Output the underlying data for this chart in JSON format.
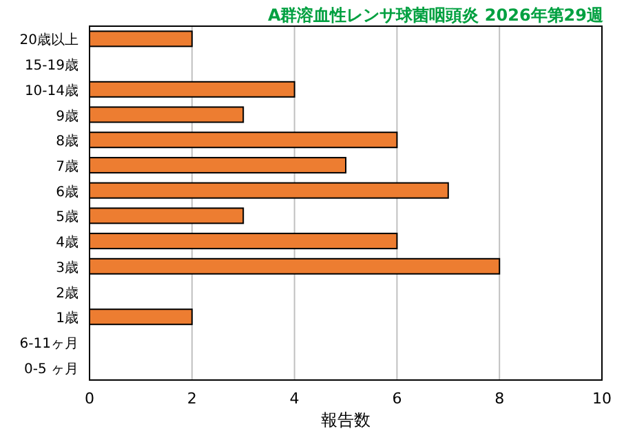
{
  "chart_data": {
    "type": "bar",
    "orientation": "horizontal",
    "title": "A群溶血性レンサ球菌咽頭炎 2026年第29週",
    "xlabel": "報告数",
    "categories": [
      "20歳以上",
      "15-19歳",
      "10-14歳",
      "9歳",
      "8歳",
      "7歳",
      "6歳",
      "5歳",
      "4歳",
      "3歳",
      "2歳",
      "1歳",
      "6-11ヶ月",
      "0-5 ヶ月"
    ],
    "values": [
      2,
      0,
      4,
      3,
      6,
      5,
      7,
      3,
      6,
      8,
      0,
      2,
      0,
      0
    ],
    "color": "#ed7d31",
    "xlim": [
      0,
      10
    ],
    "xticks": [
      0,
      2,
      4,
      6,
      8,
      10
    ],
    "grid": "x"
  }
}
